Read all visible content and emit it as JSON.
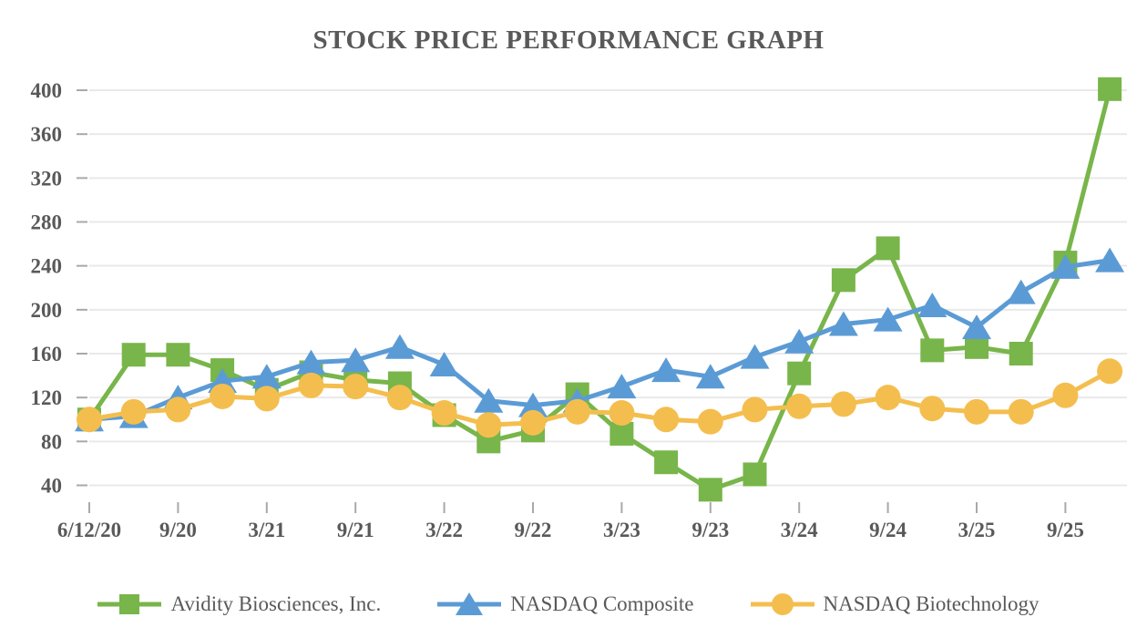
{
  "title": "STOCK PRICE PERFORMANCE GRAPH",
  "colors": {
    "background": "#FFFFFF",
    "text": "#595959",
    "gridline": "#E9E9E9",
    "tick": "#A9A9A9",
    "avidity_green": "#78B54A",
    "nasdaq_composite_blue": "#5B9BD5",
    "nasdaq_biotech_gold": "#F4BE4E"
  },
  "chart_data": {
    "type": "line",
    "title": "STOCK PRICE PERFORMANCE GRAPH",
    "grid": "horizontal",
    "legend_position": "bottom",
    "y_axis": {
      "min": 40,
      "max": 400,
      "step": 40
    },
    "y_ticks": [
      40,
      80,
      120,
      160,
      200,
      240,
      280,
      320,
      360,
      400
    ],
    "categories": [
      "6/12/20",
      "6/20",
      "9/20",
      "12/20",
      "3/21",
      "6/21",
      "9/21",
      "12/21",
      "3/22",
      "6/22",
      "9/22",
      "12/22",
      "3/23",
      "6/23",
      "9/23",
      "12/23",
      "3/24",
      "6/24",
      "9/24",
      "12/24",
      "3/25",
      "6/25",
      "9/25",
      "12/25"
    ],
    "x_tick_labels": [
      "6/12/20",
      "9/20",
      "3/21",
      "9/21",
      "3/22",
      "9/22",
      "3/23",
      "9/23",
      "3/24",
      "9/24",
      "3/25",
      "9/25"
    ],
    "x_tick_indices": [
      0,
      2,
      4,
      6,
      8,
      10,
      12,
      14,
      16,
      18,
      20,
      22
    ],
    "series": [
      {
        "name": "Avidity Biosciences, Inc.",
        "marker": "square",
        "color": "#78B54A",
        "values": [
          100,
          159,
          159,
          145,
          127,
          143,
          136,
          133,
          104,
          80,
          90,
          123,
          87,
          61,
          36,
          50,
          142,
          227,
          256,
          163,
          166,
          160,
          243,
          401
        ]
      },
      {
        "name": "NASDAQ Composite",
        "marker": "triangle",
        "color": "#5B9BD5",
        "values": [
          100,
          103,
          120,
          135,
          139,
          152,
          154,
          166,
          150,
          117,
          113,
          117,
          130,
          145,
          139,
          157,
          171,
          187,
          191,
          204,
          184,
          216,
          239,
          245
        ]
      },
      {
        "name": "NASDAQ Biotechnology",
        "marker": "circle",
        "color": "#F4BE4E",
        "values": [
          100,
          107,
          109,
          121,
          119,
          131,
          130,
          120,
          106,
          95,
          97,
          107,
          106,
          100,
          98,
          109,
          112,
          114,
          120,
          110,
          107,
          107,
          122,
          144
        ]
      }
    ]
  }
}
